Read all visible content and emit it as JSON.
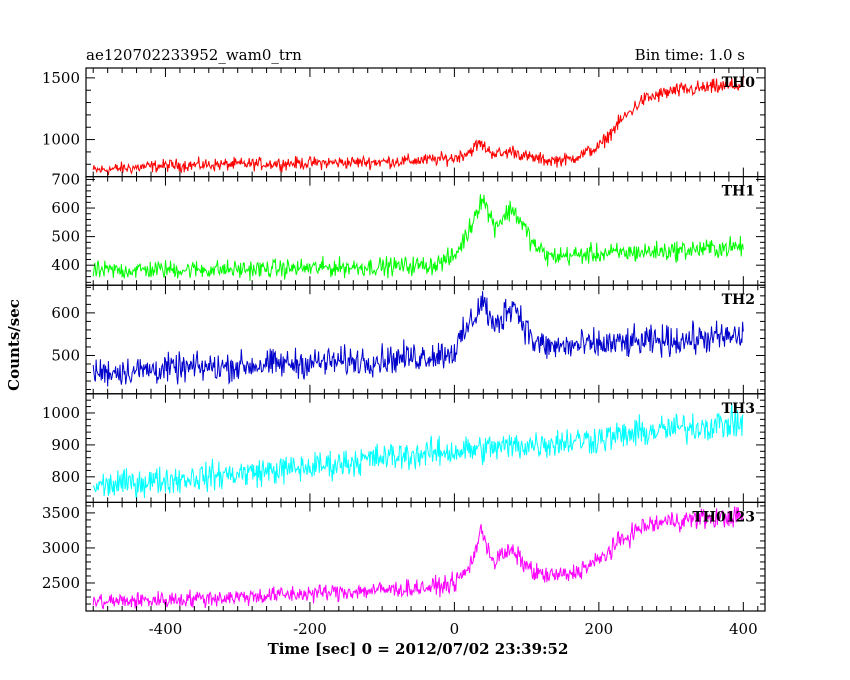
{
  "header": {
    "title": "ae120702233952_wam0_trn",
    "bin_time": "Bin time: 1.0 s"
  },
  "axes": {
    "xlabel": "Time [sec] 0 = 2012/07/02 23:39:52",
    "ylabel": "Counts/sec",
    "xlim": [
      -510,
      430
    ],
    "xticks": [
      "-400",
      "-200",
      "0",
      "200",
      "400"
    ]
  },
  "chart_data": [
    {
      "type": "line",
      "label": "TH0",
      "color": "#ff0000",
      "ylim": [
        700,
        1580
      ],
      "yticks": [
        "1000",
        "1500"
      ],
      "x": [
        -500,
        -450,
        -400,
        -300,
        -200,
        -100,
        -50,
        0,
        20,
        35,
        50,
        65,
        80,
        100,
        130,
        160,
        200,
        230,
        260,
        300,
        350,
        400
      ],
      "values": [
        750,
        770,
        790,
        800,
        810,
        820,
        830,
        850,
        900,
        970,
        900,
        880,
        910,
        860,
        830,
        840,
        940,
        1150,
        1320,
        1390,
        1420,
        1440
      ]
    },
    {
      "type": "line",
      "label": "TH1",
      "color": "#00ff00",
      "ylim": [
        330,
        710
      ],
      "yticks": [
        "400",
        "500",
        "600",
        "700"
      ],
      "x": [
        -500,
        -400,
        -300,
        -200,
        -100,
        -30,
        0,
        20,
        38,
        55,
        65,
        80,
        95,
        110,
        130,
        200,
        300,
        400
      ],
      "values": [
        380,
        385,
        385,
        390,
        395,
        400,
        430,
        520,
        640,
        540,
        560,
        600,
        540,
        470,
        430,
        440,
        450,
        465
      ]
    },
    {
      "type": "line",
      "label": "TH2",
      "color": "#0000cc",
      "ylim": [
        410,
        665
      ],
      "yticks": [
        "500",
        "600"
      ],
      "x": [
        -500,
        -400,
        -300,
        -200,
        -100,
        -30,
        0,
        20,
        40,
        55,
        70,
        80,
        95,
        110,
        130,
        200,
        300,
        400
      ],
      "values": [
        460,
        468,
        475,
        483,
        490,
        500,
        510,
        570,
        630,
        560,
        600,
        625,
        580,
        530,
        520,
        525,
        535,
        545
      ]
    },
    {
      "type": "line",
      "label": "TH3",
      "color": "#00ffff",
      "ylim": [
        720,
        1060
      ],
      "yticks": [
        "800",
        "900",
        "1000"
      ],
      "x": [
        -500,
        -400,
        -300,
        -200,
        -100,
        0,
        100,
        200,
        300,
        400
      ],
      "values": [
        770,
        790,
        810,
        830,
        860,
        880,
        900,
        920,
        950,
        970
      ]
    },
    {
      "type": "line",
      "label": "TH0123",
      "color": "#ff00ff",
      "ylim": [
        2100,
        3650
      ],
      "yticks": [
        "2500",
        "3000",
        "3500"
      ],
      "x": [
        -500,
        -400,
        -300,
        -200,
        -100,
        -30,
        0,
        20,
        38,
        55,
        65,
        80,
        95,
        110,
        130,
        160,
        200,
        230,
        260,
        300,
        350,
        400
      ],
      "values": [
        2230,
        2260,
        2300,
        2350,
        2400,
        2440,
        2500,
        2700,
        3250,
        2780,
        2900,
        2950,
        2800,
        2650,
        2600,
        2620,
        2820,
        3100,
        3300,
        3390,
        3420,
        3450
      ]
    }
  ]
}
